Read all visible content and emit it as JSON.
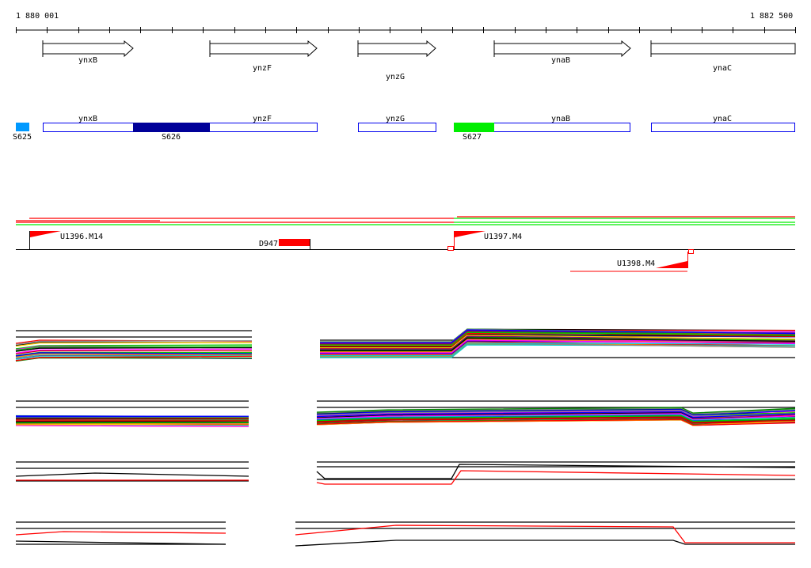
{
  "ruler": {
    "start_label": "1 880 001",
    "end_label": "1 882 500"
  },
  "genes": [
    {
      "name": "ynxB"
    },
    {
      "name": "ynzF"
    },
    {
      "name": "ynzG"
    },
    {
      "name": "ynaB"
    },
    {
      "name": "ynaC"
    }
  ],
  "segments": {
    "s625": "S625",
    "s626": "S626",
    "s627": "S627"
  },
  "segment_colors": {
    "s625": "#0099ff",
    "s626": "#000099",
    "s627": "#00ee00"
  },
  "features": {
    "u1396": "U1396.M14",
    "d947": "D947",
    "u1397": "U1397.M4",
    "u1398": "U1398.M4"
  }
}
